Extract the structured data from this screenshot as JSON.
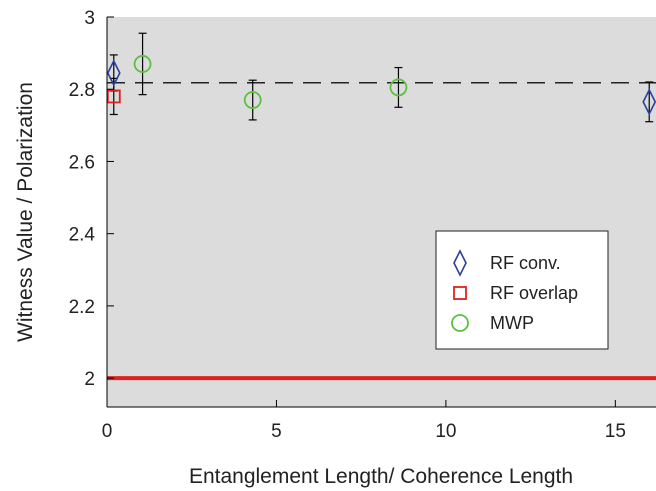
{
  "chart_data": {
    "type": "scatter",
    "xlabel": "Entanglement Length/ Coherence Length",
    "ylabel": "Witness Value / Polarization",
    "xlim": [
      0,
      16.2
    ],
    "ylim": [
      1.92,
      3.0
    ],
    "xticks": [
      0,
      5,
      10,
      15
    ],
    "yticks": [
      2,
      2.2,
      2.4,
      2.6,
      2.8,
      3
    ],
    "ytick_labels": [
      "2",
      "2.2",
      "2.4",
      "2.6",
      "2.8",
      "3"
    ],
    "xtick_labels": [
      "0",
      "5",
      "10",
      "15"
    ],
    "grid": false,
    "legend_position": "bottom-right",
    "background_color": "#dcdcdc",
    "series": [
      {
        "name": "RF conv.",
        "marker": "diamond",
        "color": "#2b3f9e",
        "points": [
          {
            "x": 0.2,
            "y": 2.845,
            "err": 0.05
          },
          {
            "x": 16.0,
            "y": 2.765,
            "err": 0.055
          }
        ]
      },
      {
        "name": "RF overlap",
        "marker": "square",
        "color": "#e02020",
        "points": [
          {
            "x": 0.2,
            "y": 2.78,
            "err": 0.05
          }
        ]
      },
      {
        "name": "MWP",
        "marker": "circle",
        "color": "#5cc040",
        "points": [
          {
            "x": 1.05,
            "y": 2.87,
            "err": 0.085
          },
          {
            "x": 4.3,
            "y": 2.77,
            "err": 0.055
          },
          {
            "x": 8.6,
            "y": 2.805,
            "err": 0.055
          }
        ]
      }
    ],
    "reference_lines": [
      {
        "y": 2.818,
        "style": "dashed",
        "color": "#222222"
      },
      {
        "y": 2.0,
        "style": "solid",
        "color": "#e02020"
      }
    ]
  }
}
